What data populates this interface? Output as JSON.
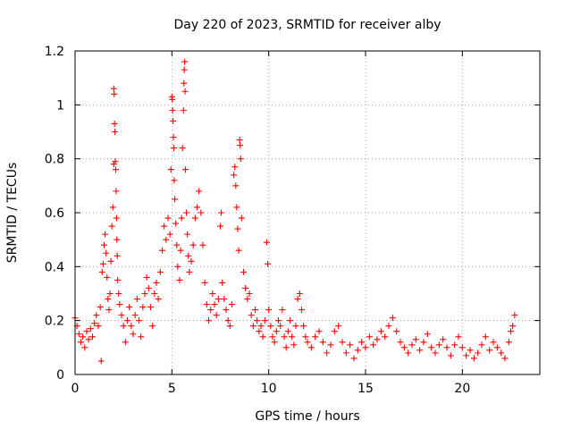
{
  "chart_data": {
    "type": "scatter",
    "title": "Day 220 of 2023, SRMTID for receiver alby",
    "xlabel": "GPS time / hours",
    "ylabel": "SRMTID / TECUs",
    "xlim": [
      0,
      24
    ],
    "ylim": [
      0,
      1.2
    ],
    "x_ticks": [
      0,
      5,
      10,
      15,
      20
    ],
    "x_tick_labels": [
      "0",
      "5",
      "10",
      "15",
      "20"
    ],
    "y_ticks": [
      0,
      0.2,
      0.4,
      0.6,
      0.8,
      1.0,
      1.2
    ],
    "y_tick_labels": [
      "0",
      "0.2",
      "0.4",
      "0.6",
      "0.8",
      "1",
      "1.2"
    ],
    "grid": true,
    "marker": "+",
    "series": [
      {
        "name": "SRMTID",
        "color": "#ff0000",
        "points": [
          [
            0.0,
            0.21
          ],
          [
            0.1,
            0.18
          ],
          [
            0.2,
            0.15
          ],
          [
            0.3,
            0.12
          ],
          [
            0.4,
            0.14
          ],
          [
            0.5,
            0.1
          ],
          [
            0.6,
            0.16
          ],
          [
            0.7,
            0.13
          ],
          [
            0.8,
            0.17
          ],
          [
            0.9,
            0.14
          ],
          [
            1.0,
            0.19
          ],
          [
            1.1,
            0.22
          ],
          [
            1.2,
            0.18
          ],
          [
            1.3,
            0.25
          ],
          [
            1.35,
            0.05
          ],
          [
            1.4,
            0.38
          ],
          [
            1.45,
            0.41
          ],
          [
            1.5,
            0.48
          ],
          [
            1.55,
            0.52
          ],
          [
            1.6,
            0.45
          ],
          [
            1.65,
            0.36
          ],
          [
            1.7,
            0.28
          ],
          [
            1.75,
            0.24
          ],
          [
            1.8,
            0.3
          ],
          [
            1.85,
            0.42
          ],
          [
            1.9,
            0.55
          ],
          [
            1.95,
            0.62
          ],
          [
            2.0,
            0.78
          ],
          [
            2.0,
            1.06
          ],
          [
            2.02,
            1.04
          ],
          [
            2.04,
            0.93
          ],
          [
            2.06,
            0.9
          ],
          [
            2.08,
            0.79
          ],
          [
            2.1,
            0.76
          ],
          [
            2.12,
            0.68
          ],
          [
            2.14,
            0.58
          ],
          [
            2.16,
            0.5
          ],
          [
            2.18,
            0.44
          ],
          [
            2.2,
            0.35
          ],
          [
            2.25,
            0.3
          ],
          [
            2.3,
            0.26
          ],
          [
            2.4,
            0.22
          ],
          [
            2.5,
            0.18
          ],
          [
            2.6,
            0.12
          ],
          [
            2.7,
            0.2
          ],
          [
            2.8,
            0.25
          ],
          [
            2.9,
            0.18
          ],
          [
            3.0,
            0.15
          ],
          [
            3.1,
            0.22
          ],
          [
            3.2,
            0.28
          ],
          [
            3.3,
            0.2
          ],
          [
            3.4,
            0.14
          ],
          [
            3.5,
            0.25
          ],
          [
            3.6,
            0.3
          ],
          [
            3.7,
            0.36
          ],
          [
            3.8,
            0.32
          ],
          [
            3.9,
            0.25
          ],
          [
            4.0,
            0.18
          ],
          [
            4.1,
            0.3
          ],
          [
            4.2,
            0.34
          ],
          [
            4.3,
            0.28
          ],
          [
            4.4,
            0.38
          ],
          [
            4.5,
            0.46
          ],
          [
            4.6,
            0.55
          ],
          [
            4.7,
            0.5
          ],
          [
            4.8,
            0.58
          ],
          [
            4.9,
            0.52
          ],
          [
            4.95,
            0.76
          ],
          [
            5.0,
            1.03
          ],
          [
            5.02,
            1.02
          ],
          [
            5.04,
            0.98
          ],
          [
            5.06,
            0.94
          ],
          [
            5.08,
            0.88
          ],
          [
            5.1,
            0.84
          ],
          [
            5.12,
            0.72
          ],
          [
            5.15,
            0.65
          ],
          [
            5.2,
            0.56
          ],
          [
            5.25,
            0.48
          ],
          [
            5.3,
            0.4
          ],
          [
            5.4,
            0.35
          ],
          [
            5.45,
            0.46
          ],
          [
            5.5,
            0.58
          ],
          [
            5.55,
            0.84
          ],
          [
            5.6,
            0.98
          ],
          [
            5.62,
            1.08
          ],
          [
            5.64,
            1.13
          ],
          [
            5.66,
            1.16
          ],
          [
            5.68,
            1.05
          ],
          [
            5.7,
            0.76
          ],
          [
            5.75,
            0.6
          ],
          [
            5.8,
            0.52
          ],
          [
            5.85,
            0.44
          ],
          [
            5.9,
            0.38
          ],
          [
            6.0,
            0.42
          ],
          [
            6.1,
            0.48
          ],
          [
            6.2,
            0.58
          ],
          [
            6.3,
            0.62
          ],
          [
            6.4,
            0.68
          ],
          [
            6.5,
            0.6
          ],
          [
            6.6,
            0.48
          ],
          [
            6.7,
            0.34
          ],
          [
            6.8,
            0.26
          ],
          [
            6.9,
            0.2
          ],
          [
            7.0,
            0.24
          ],
          [
            7.1,
            0.3
          ],
          [
            7.2,
            0.26
          ],
          [
            7.3,
            0.22
          ],
          [
            7.4,
            0.28
          ],
          [
            7.5,
            0.55
          ],
          [
            7.55,
            0.6
          ],
          [
            7.6,
            0.34
          ],
          [
            7.7,
            0.28
          ],
          [
            7.8,
            0.24
          ],
          [
            7.9,
            0.2
          ],
          [
            8.0,
            0.18
          ],
          [
            8.1,
            0.26
          ],
          [
            8.2,
            0.74
          ],
          [
            8.25,
            0.77
          ],
          [
            8.3,
            0.7
          ],
          [
            8.35,
            0.62
          ],
          [
            8.4,
            0.54
          ],
          [
            8.45,
            0.46
          ],
          [
            8.5,
            0.87
          ],
          [
            8.52,
            0.85
          ],
          [
            8.55,
            0.8
          ],
          [
            8.6,
            0.58
          ],
          [
            8.7,
            0.38
          ],
          [
            8.8,
            0.32
          ],
          [
            8.9,
            0.28
          ],
          [
            9.0,
            0.3
          ],
          [
            9.1,
            0.22
          ],
          [
            9.2,
            0.18
          ],
          [
            9.3,
            0.24
          ],
          [
            9.4,
            0.2
          ],
          [
            9.5,
            0.16
          ],
          [
            9.6,
            0.18
          ],
          [
            9.7,
            0.14
          ],
          [
            9.8,
            0.2
          ],
          [
            9.9,
            0.49
          ],
          [
            9.95,
            0.41
          ],
          [
            10.0,
            0.24
          ],
          [
            10.1,
            0.18
          ],
          [
            10.2,
            0.14
          ],
          [
            10.3,
            0.12
          ],
          [
            10.4,
            0.16
          ],
          [
            10.5,
            0.2
          ],
          [
            10.6,
            0.18
          ],
          [
            10.7,
            0.24
          ],
          [
            10.8,
            0.14
          ],
          [
            10.9,
            0.1
          ],
          [
            11.0,
            0.16
          ],
          [
            11.1,
            0.2
          ],
          [
            11.2,
            0.14
          ],
          [
            11.3,
            0.11
          ],
          [
            11.4,
            0.18
          ],
          [
            11.5,
            0.28
          ],
          [
            11.6,
            0.3
          ],
          [
            11.7,
            0.24
          ],
          [
            11.8,
            0.18
          ],
          [
            11.9,
            0.14
          ],
          [
            12.0,
            0.12
          ],
          [
            12.2,
            0.1
          ],
          [
            12.4,
            0.14
          ],
          [
            12.6,
            0.16
          ],
          [
            12.8,
            0.12
          ],
          [
            13.0,
            0.08
          ],
          [
            13.2,
            0.11
          ],
          [
            13.4,
            0.16
          ],
          [
            13.6,
            0.18
          ],
          [
            13.8,
            0.12
          ],
          [
            14.0,
            0.08
          ],
          [
            14.2,
            0.11
          ],
          [
            14.4,
            0.06
          ],
          [
            14.6,
            0.09
          ],
          [
            14.8,
            0.12
          ],
          [
            15.0,
            0.1
          ],
          [
            15.2,
            0.14
          ],
          [
            15.4,
            0.11
          ],
          [
            15.6,
            0.13
          ],
          [
            15.8,
            0.16
          ],
          [
            16.0,
            0.14
          ],
          [
            16.2,
            0.18
          ],
          [
            16.4,
            0.21
          ],
          [
            16.6,
            0.16
          ],
          [
            16.8,
            0.12
          ],
          [
            17.0,
            0.1
          ],
          [
            17.2,
            0.08
          ],
          [
            17.4,
            0.11
          ],
          [
            17.6,
            0.13
          ],
          [
            17.8,
            0.09
          ],
          [
            18.0,
            0.12
          ],
          [
            18.2,
            0.15
          ],
          [
            18.4,
            0.1
          ],
          [
            18.6,
            0.08
          ],
          [
            18.8,
            0.11
          ],
          [
            19.0,
            0.13
          ],
          [
            19.2,
            0.1
          ],
          [
            19.4,
            0.07
          ],
          [
            19.6,
            0.11
          ],
          [
            19.8,
            0.14
          ],
          [
            20.0,
            0.1
          ],
          [
            20.2,
            0.07
          ],
          [
            20.4,
            0.09
          ],
          [
            20.6,
            0.06
          ],
          [
            20.8,
            0.08
          ],
          [
            21.0,
            0.11
          ],
          [
            21.2,
            0.14
          ],
          [
            21.4,
            0.09
          ],
          [
            21.6,
            0.12
          ],
          [
            21.8,
            0.1
          ],
          [
            22.0,
            0.08
          ],
          [
            22.2,
            0.06
          ],
          [
            22.4,
            0.12
          ],
          [
            22.5,
            0.16
          ],
          [
            22.6,
            0.18
          ],
          [
            22.7,
            0.22
          ]
        ]
      }
    ]
  }
}
